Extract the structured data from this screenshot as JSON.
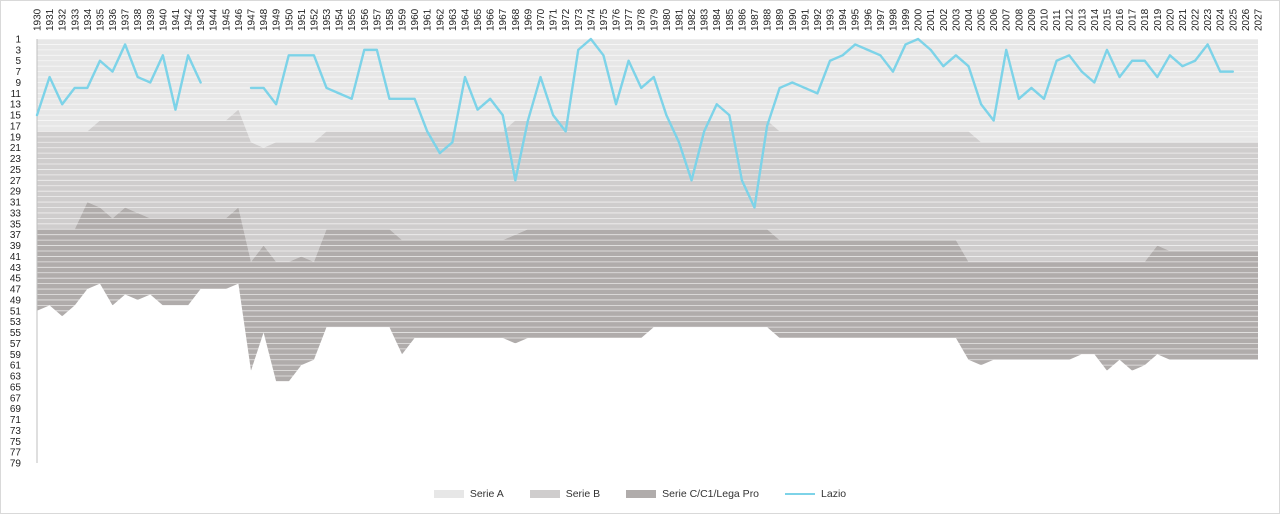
{
  "chart_data": {
    "type": "area",
    "x_categories": [
      1930,
      1931,
      1932,
      1933,
      1934,
      1935,
      1936,
      1937,
      1938,
      1939,
      1940,
      1941,
      1942,
      1943,
      1944,
      1945,
      1946,
      1947,
      1948,
      1949,
      1950,
      1951,
      1952,
      1953,
      1954,
      1955,
      1956,
      1957,
      1958,
      1959,
      1960,
      1961,
      1962,
      1963,
      1964,
      1965,
      1966,
      1967,
      1968,
      1969,
      1970,
      1971,
      1972,
      1973,
      1974,
      1975,
      1976,
      1977,
      1978,
      1979,
      1980,
      1981,
      1982,
      1983,
      1984,
      1985,
      1986,
      1987,
      1988,
      1989,
      1990,
      1991,
      1992,
      1993,
      1994,
      1995,
      1996,
      1997,
      1998,
      1999,
      2000,
      2001,
      2002,
      2003,
      2004,
      2005,
      2006,
      2007,
      2008,
      2009,
      2010,
      2011,
      2012,
      2013,
      2014,
      2015,
      2016,
      2017,
      2018,
      2019,
      2020,
      2021,
      2022,
      2023,
      2024,
      2025,
      2026,
      2027
    ],
    "y_axis": {
      "min": 1,
      "max": 79,
      "tick_step": 2,
      "inverted": true
    },
    "series": [
      {
        "name": "Serie A",
        "color": "#e7e7e7",
        "kind": "area",
        "bottom": [
          18,
          18,
          18,
          18,
          18,
          16,
          16,
          16,
          16,
          16,
          16,
          16,
          16,
          16,
          16,
          16,
          14,
          20,
          21,
          20,
          20,
          20,
          20,
          18,
          18,
          18,
          18,
          18,
          18,
          18,
          18,
          18,
          18,
          18,
          18,
          18,
          18,
          18,
          16,
          16,
          16,
          16,
          16,
          16,
          16,
          16,
          16,
          16,
          16,
          16,
          16,
          16,
          16,
          16,
          16,
          16,
          16,
          16,
          16,
          18,
          18,
          18,
          18,
          18,
          18,
          18,
          18,
          18,
          18,
          18,
          18,
          18,
          18,
          18,
          18,
          20,
          20,
          20,
          20,
          20,
          20,
          20,
          20,
          20,
          20,
          20,
          20,
          20,
          20,
          20,
          20,
          20,
          20,
          20,
          20,
          20,
          20,
          20
        ]
      },
      {
        "name": "Serie B",
        "color": "#cfcdcd",
        "kind": "area",
        "bottom": [
          36,
          36,
          36,
          36,
          31,
          32,
          34,
          32,
          33,
          34,
          34,
          34,
          34,
          34,
          34,
          34,
          32,
          42,
          39,
          42,
          42,
          41,
          42,
          36,
          36,
          36,
          36,
          36,
          36,
          38,
          38,
          38,
          38,
          38,
          38,
          38,
          38,
          38,
          37,
          36,
          36,
          36,
          36,
          36,
          36,
          36,
          36,
          36,
          36,
          36,
          36,
          36,
          36,
          36,
          36,
          36,
          36,
          36,
          36,
          38,
          38,
          38,
          38,
          38,
          38,
          38,
          38,
          38,
          38,
          38,
          38,
          38,
          38,
          38,
          42,
          42,
          42,
          42,
          42,
          42,
          42,
          42,
          42,
          42,
          42,
          42,
          42,
          42,
          42,
          39,
          40,
          40,
          40,
          40,
          40,
          40,
          40,
          40
        ]
      },
      {
        "name": "Serie C/C1/Lega Pro",
        "color": "#b0acab",
        "kind": "area",
        "bottom": [
          51,
          50,
          52,
          50,
          47,
          46,
          50,
          48,
          49,
          48,
          50,
          50,
          50,
          47,
          47,
          47,
          46,
          62,
          55,
          64,
          64,
          61,
          60,
          54,
          54,
          54,
          54,
          54,
          54,
          59,
          56,
          56,
          56,
          56,
          56,
          56,
          56,
          56,
          57,
          56,
          56,
          56,
          56,
          56,
          56,
          56,
          56,
          56,
          56,
          54,
          54,
          54,
          54,
          54,
          54,
          54,
          54,
          54,
          54,
          56,
          56,
          56,
          56,
          56,
          56,
          56,
          56,
          56,
          56,
          56,
          56,
          56,
          56,
          56,
          60,
          61,
          60,
          60,
          60,
          60,
          60,
          60,
          60,
          59,
          59,
          62,
          60,
          62,
          61,
          59,
          60,
          60,
          60,
          60,
          60,
          60,
          60,
          60
        ]
      },
      {
        "name": "Lazio",
        "color": "#7dd3e8",
        "kind": "line",
        "values": [
          15,
          8,
          13,
          10,
          10,
          5,
          7,
          2,
          8,
          9,
          4,
          14,
          4,
          9,
          null,
          null,
          null,
          10,
          10,
          13,
          4,
          4,
          4,
          10,
          11,
          12,
          3,
          3,
          12,
          12,
          12,
          18,
          22,
          20,
          8,
          14,
          12,
          15,
          27,
          16,
          8,
          15,
          18,
          3,
          1,
          4,
          13,
          5,
          10,
          8,
          15,
          20,
          27,
          18,
          13,
          15,
          27,
          32,
          17,
          10,
          9,
          10,
          11,
          5,
          4,
          2,
          3,
          4,
          7,
          2,
          1,
          3,
          6,
          4,
          6,
          13,
          16,
          3,
          12,
          10,
          12,
          5,
          4,
          7,
          9,
          3,
          8,
          5,
          5,
          8,
          4,
          6,
          5,
          2,
          7,
          7,
          null,
          null
        ]
      }
    ],
    "legend": [
      "Serie A",
      "Serie B",
      "Serie C/C1/Lega Pro",
      "Lazio"
    ],
    "legend_position": "bottom",
    "gridlines": true,
    "title": "",
    "xlabel": "",
    "ylabel": ""
  }
}
